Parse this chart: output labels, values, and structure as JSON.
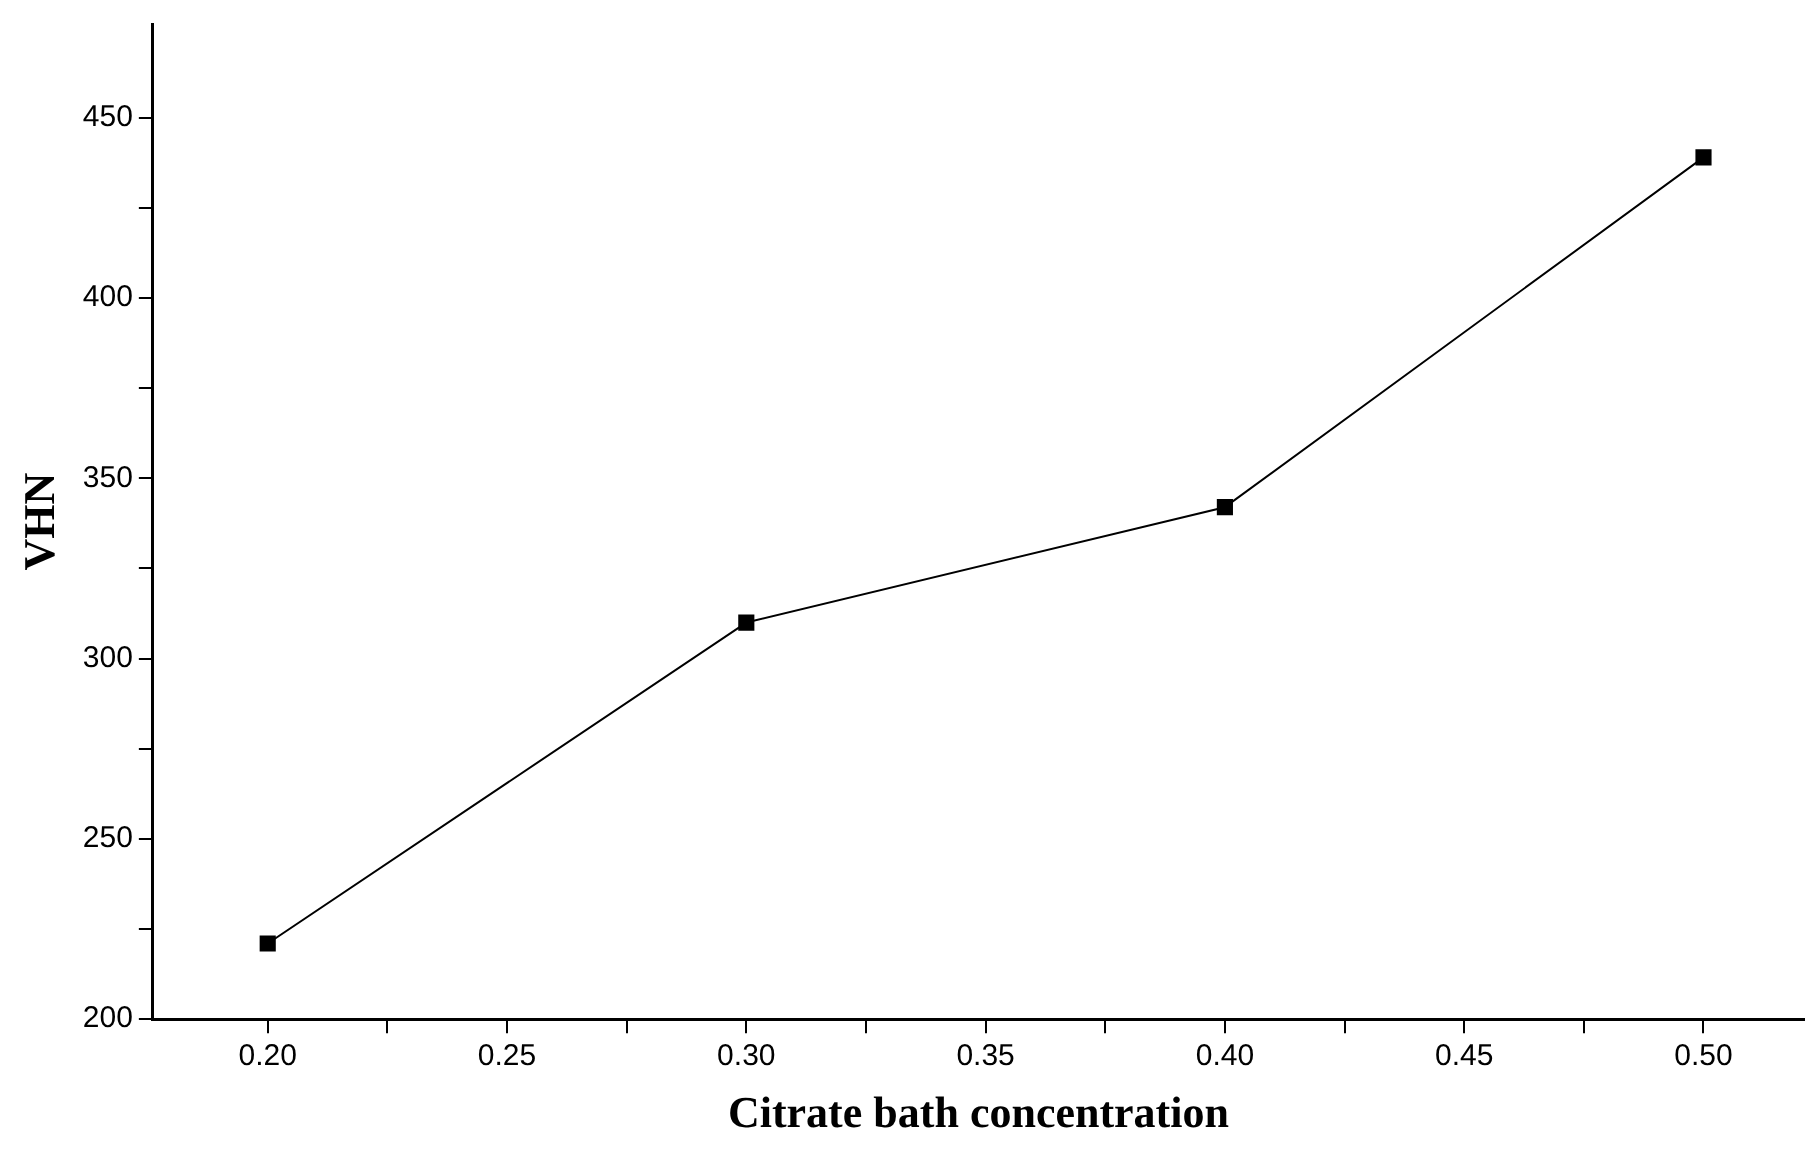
{
  "chart_data": {
    "type": "line",
    "xlabel": "Citrate bath concentration",
    "ylabel": "VHN",
    "x": [
      0.2,
      0.3,
      0.4,
      0.5
    ],
    "series": [
      {
        "color": "#000000",
        "values": [
          221,
          310,
          342,
          439
        ]
      }
    ],
    "xlim": [
      0.176,
      0.521
    ],
    "ylim": [
      200,
      476
    ],
    "xticks": [
      {
        "value": 0.2,
        "label": "0.20"
      },
      {
        "value": 0.225,
        "label": null
      },
      {
        "value": 0.25,
        "label": "0.25"
      },
      {
        "value": 0.275,
        "label": null
      },
      {
        "value": 0.3,
        "label": "0.30"
      },
      {
        "value": 0.325,
        "label": null
      },
      {
        "value": 0.35,
        "label": "0.35"
      },
      {
        "value": 0.375,
        "label": null
      },
      {
        "value": 0.4,
        "label": "0.40"
      },
      {
        "value": 0.425,
        "label": null
      },
      {
        "value": 0.45,
        "label": "0.45"
      },
      {
        "value": 0.475,
        "label": null
      },
      {
        "value": 0.5,
        "label": "0.50"
      }
    ],
    "yticks": [
      200,
      {
        "value": 225,
        "label": null
      },
      250,
      {
        "value": 275,
        "label": null
      },
      300,
      {
        "value": 325,
        "label": null
      },
      350,
      {
        "value": 375,
        "label": null
      },
      400,
      {
        "value": 425,
        "label": null
      },
      450
    ],
    "grid": false,
    "legend": false,
    "marker": "square",
    "line_style": "solid"
  }
}
